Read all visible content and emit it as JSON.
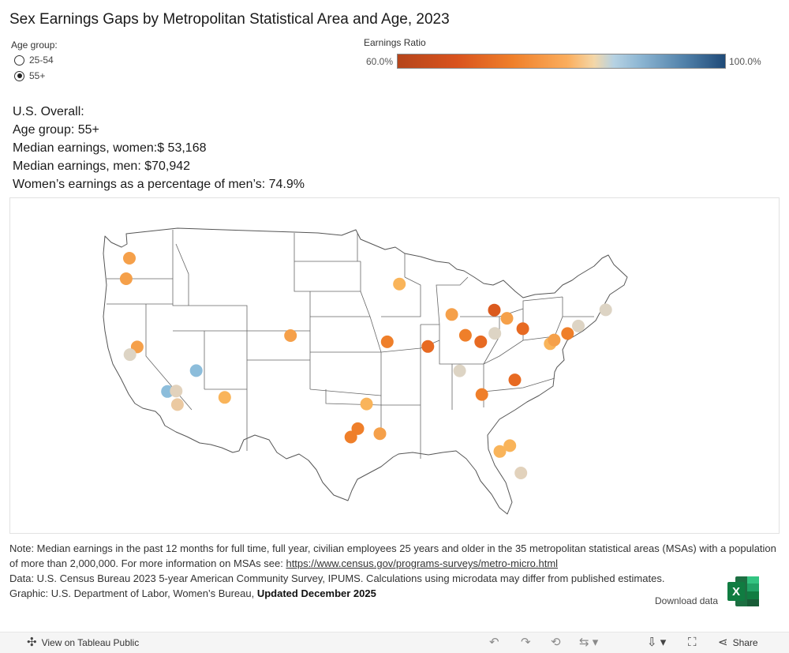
{
  "title": "Sex Earnings Gaps by Metropolitan Statistical Area and Age, 2023",
  "age_group": {
    "label": "Age group:",
    "options": [
      "25-54",
      "55+"
    ],
    "selected": "55+"
  },
  "legend": {
    "title": "Earnings Ratio",
    "min_label": "60.0%",
    "max_label": "100.0%",
    "colors": [
      "#b5451b",
      "#ef7f2a",
      "#fbae5e",
      "#f4d7a8",
      "#8db6d3",
      "#1f4a78"
    ]
  },
  "summary": {
    "line1": "U.S. Overall:",
    "line2": "Age group: 55+",
    "line3": "Median earnings, women:$ 53,168",
    "line4": "Median earnings, men: $70,942",
    "line5": "Women’s earnings as a percentage of men’s: 74.9%"
  },
  "map": {
    "msa_points": [
      {
        "lon": -122.33,
        "lat": 47.61,
        "color": "#f5a04a"
      },
      {
        "lon": -122.68,
        "lat": 45.52,
        "color": "#f5a04a"
      },
      {
        "lon": -121.49,
        "lat": 38.58,
        "color": "#f5a04a"
      },
      {
        "lon": -122.27,
        "lat": 37.8,
        "color": "#ddd4c4"
      },
      {
        "lon": -118.24,
        "lat": 34.05,
        "color": "#8cbddb"
      },
      {
        "lon": -117.29,
        "lat": 34.1,
        "color": "#e2d2bc"
      },
      {
        "lon": -117.16,
        "lat": 32.72,
        "color": "#ebc9a1"
      },
      {
        "lon": -115.14,
        "lat": 36.17,
        "color": "#8cbddb"
      },
      {
        "lon": -112.07,
        "lat": 33.45,
        "color": "#f9b45a"
      },
      {
        "lon": -104.99,
        "lat": 39.74,
        "color": "#f5a04a"
      },
      {
        "lon": -96.8,
        "lat": 32.78,
        "color": "#f9b45a"
      },
      {
        "lon": -97.74,
        "lat": 30.27,
        "color": "#ef7f2a"
      },
      {
        "lon": -98.49,
        "lat": 29.42,
        "color": "#ef7f2a"
      },
      {
        "lon": -95.37,
        "lat": 29.76,
        "color": "#f5a04a"
      },
      {
        "lon": -94.58,
        "lat": 39.1,
        "color": "#ef7f2a"
      },
      {
        "lon": -90.2,
        "lat": 38.63,
        "color": "#e76a22"
      },
      {
        "lon": -93.27,
        "lat": 44.98,
        "color": "#f9b45a"
      },
      {
        "lon": -87.63,
        "lat": 41.88,
        "color": "#f5a04a"
      },
      {
        "lon": -86.16,
        "lat": 39.77,
        "color": "#ef7f2a"
      },
      {
        "lon": -84.51,
        "lat": 39.1,
        "color": "#e76a22"
      },
      {
        "lon": -82.99,
        "lat": 39.96,
        "color": "#ddd4c4"
      },
      {
        "lon": -83.05,
        "lat": 42.33,
        "color": "#db5a1e"
      },
      {
        "lon": -81.69,
        "lat": 41.5,
        "color": "#f5a04a"
      },
      {
        "lon": -79.99,
        "lat": 40.44,
        "color": "#e76a22"
      },
      {
        "lon": -86.78,
        "lat": 36.16,
        "color": "#ddd4c4"
      },
      {
        "lon": -84.39,
        "lat": 33.75,
        "color": "#ef7f2a"
      },
      {
        "lon": -80.84,
        "lat": 35.23,
        "color": "#e76a22"
      },
      {
        "lon": -77.04,
        "lat": 38.91,
        "color": "#f9b45a"
      },
      {
        "lon": -76.61,
        "lat": 39.29,
        "color": "#f5a04a"
      },
      {
        "lon": -75.17,
        "lat": 39.95,
        "color": "#ef7f2a"
      },
      {
        "lon": -74.01,
        "lat": 40.71,
        "color": "#ddd4c4"
      },
      {
        "lon": -71.06,
        "lat": 42.36,
        "color": "#ddd4c4"
      },
      {
        "lon": -82.46,
        "lat": 27.95,
        "color": "#f9b45a"
      },
      {
        "lon": -81.38,
        "lat": 28.54,
        "color": "#f9b45a"
      },
      {
        "lon": -80.19,
        "lat": 25.76,
        "color": "#e2d2bc"
      }
    ]
  },
  "notes": {
    "line1": "Note: Median earnings in the past 12 months for full time, full year, civilian employees 25 years and older in the 35 metropolitan statistical areas (MSAs) with a population of more than 2,000,000. For more information on MSAs see: ",
    "link": "https://www.census.gov/programs-surveys/metro-micro.html",
    "line2": "Data: U.S. Census Bureau 2023 5-year American Community Survey, IPUMS. Calculations using microdata may differ from published estimates.",
    "line3": "Graphic: U.S. Department of Labor, Women’s Bureau, ",
    "updated": "Updated December 2025"
  },
  "download": {
    "label": "Download data",
    "icon_letter": "X"
  },
  "toolbar": {
    "view_label": "View on Tableau Public",
    "share_label": "Share"
  }
}
